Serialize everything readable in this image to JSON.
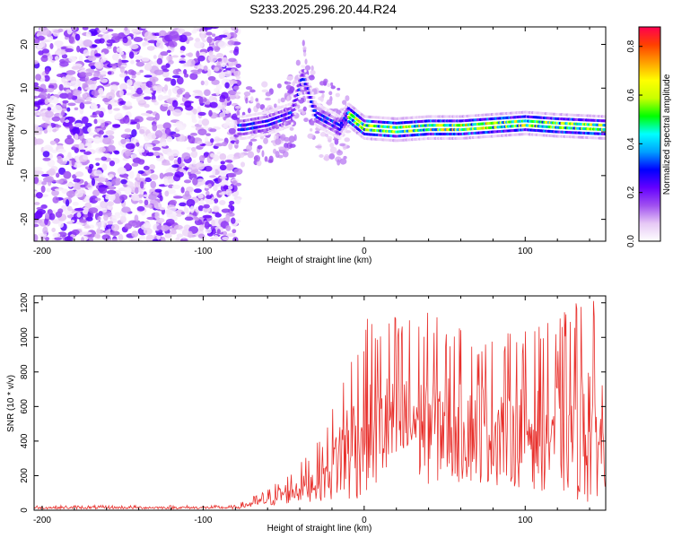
{
  "title": "S233.2025.296.20.44.R24",
  "chart_data": [
    {
      "type": "heatmap",
      "xlabel": "Height of straight line (km)",
      "ylabel": "Frequency (Hz)",
      "xlim": [
        -205,
        150
      ],
      "ylim": [
        -25,
        24
      ],
      "xticks": [
        -200,
        -100,
        0,
        100
      ],
      "yticks": [
        -20,
        -10,
        0,
        10,
        20
      ],
      "colorbar": {
        "label": "Normalized spectral amplitude",
        "range": [
          0,
          0.88
        ],
        "ticks": [
          "0.0",
          "0.2",
          "0.4",
          "0.6",
          "0.8"
        ],
        "tick_values": [
          0,
          0.2,
          0.4,
          0.6,
          0.8
        ],
        "colors": [
          "#ffffff",
          "#e6c8f5",
          "#a050f0",
          "#6400ff",
          "#0000ff",
          "#00a0ff",
          "#00ffff",
          "#00ff00",
          "#c8ff00",
          "#ffff00",
          "#ffa000",
          "#ff4000",
          "#ff0050"
        ]
      },
      "features": {
        "noise_region_x": [
          -205,
          -78
        ],
        "noise_amplitude": 0.15,
        "signal_band_center_hz": [
          [
            -75,
            1
          ],
          [
            -60,
            2
          ],
          [
            -45,
            4
          ],
          [
            -38,
            13
          ],
          [
            -30,
            4
          ],
          [
            -20,
            2
          ],
          [
            -15,
            1
          ],
          [
            -10,
            4
          ],
          [
            0,
            1
          ],
          [
            20,
            0.5
          ],
          [
            40,
            1
          ],
          [
            60,
            1
          ],
          [
            80,
            1.5
          ],
          [
            100,
            2
          ],
          [
            120,
            1.5
          ],
          [
            150,
            1
          ]
        ],
        "signal_band_width_hz": 2.5,
        "signal_peak_amplitude": 0.85
      }
    },
    {
      "type": "line",
      "xlabel": "Height of straight line (km)",
      "ylabel": "SNR (10 * v/v)",
      "xlim": [
        -205,
        150
      ],
      "ylim": [
        0,
        1240
      ],
      "xticks": [
        -200,
        -100,
        0,
        100
      ],
      "yticks": [
        0,
        200,
        400,
        600,
        800,
        1000,
        1200
      ],
      "color": "#e8302c",
      "envelope": {
        "x": [
          -205,
          -80,
          -60,
          -40,
          -25,
          -15,
          -10,
          0,
          20,
          40,
          60,
          80,
          100,
          120,
          135,
          140,
          145,
          150
        ],
        "mean": [
          15,
          15,
          60,
          130,
          200,
          320,
          380,
          480,
          520,
          530,
          500,
          480,
          480,
          480,
          520,
          540,
          420,
          380
        ],
        "spread": [
          10,
          10,
          50,
          110,
          180,
          350,
          480,
          480,
          500,
          480,
          430,
          420,
          440,
          480,
          600,
          700,
          420,
          300
        ]
      }
    }
  ]
}
